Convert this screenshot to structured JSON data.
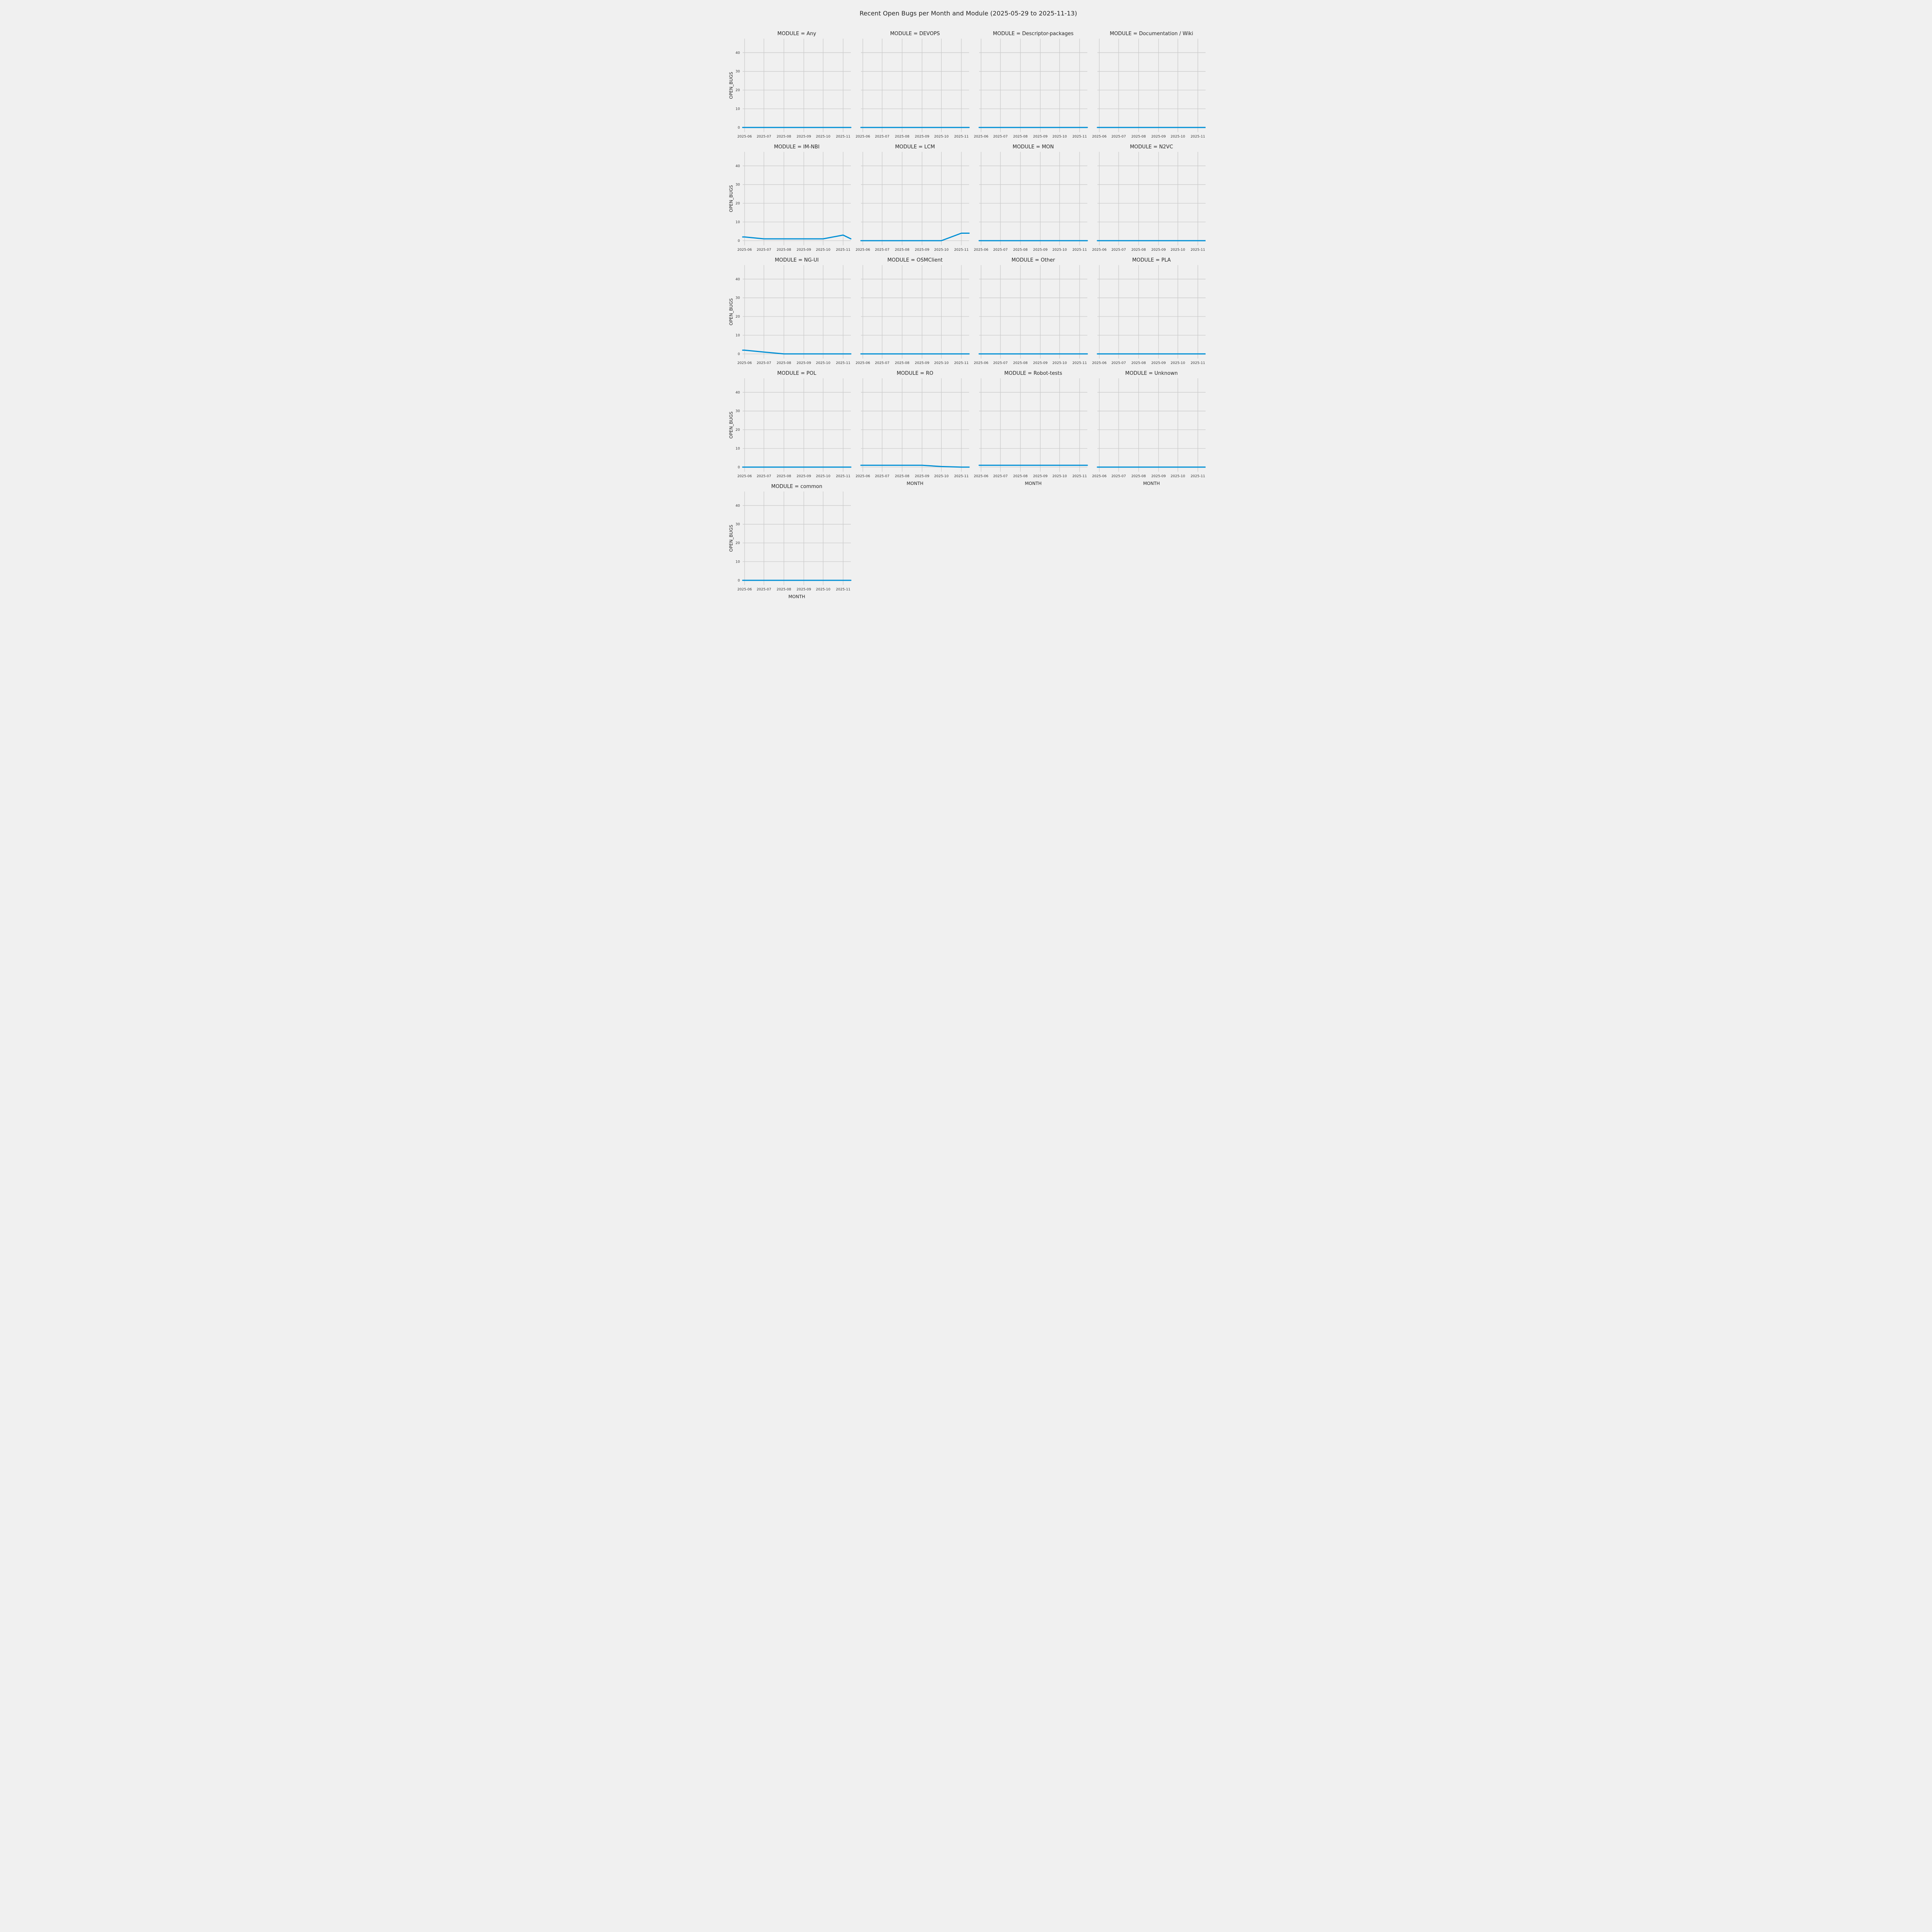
{
  "figure": {
    "background": "#f0f0f0",
    "grid_color": "#cbcbcb",
    "line_color": "#008fd5",
    "title_color": "#262626",
    "tick_color": "#3a3a3a"
  },
  "chart_data": {
    "type": "line",
    "title": "Recent Open Bugs per Month and Module (2025-05-29 to 2025-11-13)",
    "xlabel": "MONTH",
    "ylabel": "OPEN_BUGS",
    "ylim": [
      -2.5,
      47.5
    ],
    "yticks": [
      0,
      10,
      20,
      30,
      40
    ],
    "xtick_labels": [
      "2025-06",
      "2025-07",
      "2025-08",
      "2025-09",
      "2025-10",
      "2025-11"
    ],
    "xtick_days": [
      3,
      33,
      64,
      95,
      125,
      156
    ],
    "x_span_days": 168,
    "x_days": [
      0,
      3,
      33,
      64,
      95,
      125,
      156,
      168
    ],
    "grid": true,
    "legend": "none",
    "facets": [
      {
        "module": "Any",
        "title": "MODULE = Any",
        "values": [
          0,
          0,
          0,
          0,
          0,
          0,
          0,
          0
        ]
      },
      {
        "module": "DEVOPS",
        "title": "MODULE = DEVOPS",
        "values": [
          0,
          0,
          0,
          0,
          0,
          0,
          0,
          0
        ]
      },
      {
        "module": "Descriptor-packages",
        "title": "MODULE = Descriptor-packages",
        "values": [
          0,
          0,
          0,
          0,
          0,
          0,
          0,
          0
        ]
      },
      {
        "module": "Documentation / Wiki",
        "title": "MODULE = Documentation / Wiki",
        "values": [
          0,
          0,
          0,
          0,
          0,
          0,
          0,
          0
        ]
      },
      {
        "module": "IM-NBI",
        "title": "MODULE = IM-NBI",
        "values": [
          2,
          2,
          1,
          1,
          1,
          1,
          3,
          1
        ]
      },
      {
        "module": "LCM",
        "title": "MODULE = LCM",
        "values": [
          0,
          0,
          0,
          0,
          0,
          0,
          4,
          4
        ]
      },
      {
        "module": "MON",
        "title": "MODULE = MON",
        "values": [
          0,
          0,
          0,
          0,
          0,
          0,
          0,
          0
        ]
      },
      {
        "module": "N2VC",
        "title": "MODULE = N2VC",
        "values": [
          0,
          0,
          0,
          0,
          0,
          0,
          0,
          0
        ]
      },
      {
        "module": "NG-UI",
        "title": "MODULE = NG-UI",
        "values": [
          2,
          2,
          1,
          0,
          0,
          0,
          0,
          0
        ]
      },
      {
        "module": "OSMClient",
        "title": "MODULE = OSMClient",
        "values": [
          0,
          0,
          0,
          0,
          0,
          0,
          0,
          0
        ]
      },
      {
        "module": "Other",
        "title": "MODULE = Other",
        "values": [
          0,
          0,
          0,
          0,
          0,
          0,
          0,
          0
        ]
      },
      {
        "module": "PLA",
        "title": "MODULE = PLA",
        "values": [
          0,
          0,
          0,
          0,
          0,
          0,
          0,
          0
        ]
      },
      {
        "module": "POL",
        "title": "MODULE = POL",
        "values": [
          0,
          0,
          0,
          0,
          0,
          0,
          0,
          0
        ]
      },
      {
        "module": "RO",
        "title": "MODULE = RO",
        "values": [
          1,
          1,
          1,
          1,
          1,
          0.3,
          0,
          0
        ]
      },
      {
        "module": "Robot-tests",
        "title": "MODULE = Robot-tests",
        "values": [
          1,
          1,
          1,
          1,
          1,
          1,
          1,
          1
        ]
      },
      {
        "module": "Unknown",
        "title": "MODULE = Unknown",
        "values": [
          0,
          0,
          0,
          0,
          0,
          0,
          0,
          0
        ]
      },
      {
        "module": "common",
        "title": "MODULE = common",
        "values": [
          0,
          0,
          0,
          0,
          0,
          0,
          0,
          0
        ]
      }
    ]
  }
}
